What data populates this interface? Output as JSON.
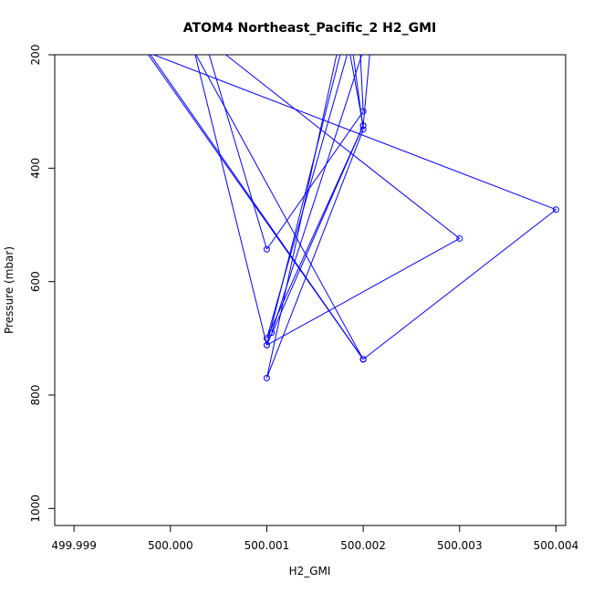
{
  "chart_data": {
    "type": "line",
    "title": "ATOM4 Northeast_Pacific_2 H2_GMI",
    "xlabel": "H2_GMI",
    "ylabel": "Pressure (mbar)",
    "xlim": [
      499.9988,
      500.0041
    ],
    "ylim": [
      1030,
      200
    ],
    "y_reversed": true,
    "grid": false,
    "legend": "none",
    "x_ticks": [
      499.999,
      500.0,
      500.001,
      500.002,
      500.003,
      500.004
    ],
    "x_tick_labels": [
      "499.999",
      "500.000",
      "500.001",
      "500.002",
      "500.003",
      "500.004"
    ],
    "y_ticks": [
      200,
      400,
      600,
      800,
      1000
    ],
    "y_tick_labels": [
      "200",
      "400",
      "600",
      "800",
      "1000"
    ],
    "series": [
      {
        "color": "#0000ff",
        "line_width": 1,
        "marker": "open-circle",
        "points": [
          {
            "x": 499.99965,
            "y": 165
          },
          {
            "x": 500.002,
            "y": 737
          },
          {
            "x": 500.002,
            "y": 737
          },
          {
            "x": 500.004,
            "y": 473
          },
          {
            "x": 499.99975,
            "y": 195
          },
          {
            "x": 500.002,
            "y": 737
          },
          {
            "x": 500.00025,
            "y": 195
          },
          {
            "x": 500.001,
            "y": 712
          },
          {
            "x": 500.003,
            "y": 524
          },
          {
            "x": 500.00035,
            "y": 170
          },
          {
            "x": 500.001,
            "y": 543
          },
          {
            "x": 500.002,
            "y": 300
          },
          {
            "x": 500.00195,
            "y": 130
          },
          {
            "x": 500.001,
            "y": 700
          },
          {
            "x": 500.002,
            "y": 325
          },
          {
            "x": 500.0018,
            "y": 140
          },
          {
            "x": 500.001,
            "y": 770
          },
          {
            "x": 500.002,
            "y": 332
          },
          {
            "x": 500.00185,
            "y": 140
          },
          {
            "x": 500.001,
            "y": 712
          },
          {
            "x": 500.002,
            "y": 325
          },
          {
            "x": 500.0021,
            "y": 140
          },
          {
            "x": 500.00105,
            "y": 690
          }
        ]
      }
    ]
  }
}
